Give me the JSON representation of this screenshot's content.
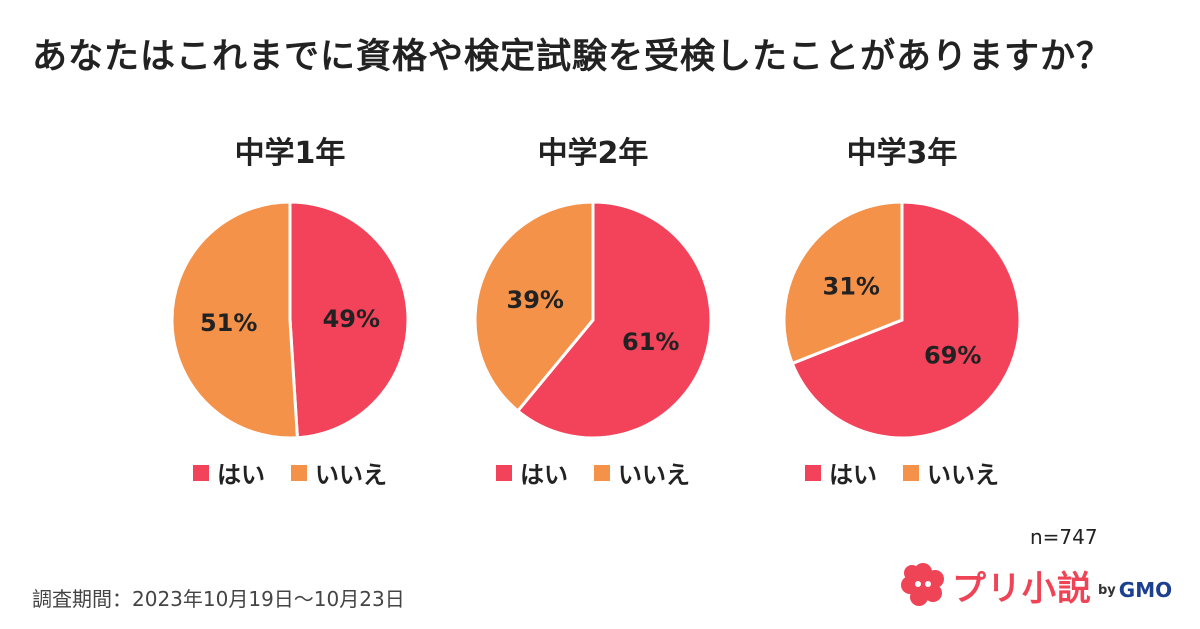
{
  "title": "あなたはこれまでに資格や検定試験を受検したことがありますか？",
  "colors": {
    "yes": "#f2435a",
    "no": "#f5924a"
  },
  "chart_data": [
    {
      "type": "pie",
      "title": "中学1年",
      "labels": [
        "はい",
        "いいえ"
      ],
      "values": [
        49,
        51
      ],
      "value_labels": [
        "49%",
        "51%"
      ]
    },
    {
      "type": "pie",
      "title": "中学2年",
      "labels": [
        "はい",
        "いいえ"
      ],
      "values": [
        61,
        39
      ],
      "value_labels": [
        "61%",
        "39%"
      ]
    },
    {
      "type": "pie",
      "title": "中学3年",
      "labels": [
        "はい",
        "いいえ"
      ],
      "values": [
        69,
        31
      ],
      "value_labels": [
        "69%",
        "31%"
      ]
    }
  ],
  "sample_size": "n=747",
  "survey_period": "調査期間：2023年10月19日〜10月23日",
  "logo": {
    "text": "プリ小説",
    "by": "by",
    "brand": "GMO"
  }
}
